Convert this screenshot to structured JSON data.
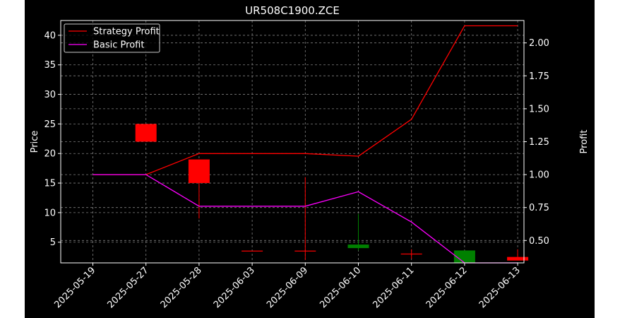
{
  "chart_data": {
    "type": "candlestick",
    "title": "UR508C1900.ZCE",
    "categories": [
      "2025-05-19",
      "2025-05-27",
      "2025-05-28",
      "2025-06-03",
      "2025-06-09",
      "2025-06-10",
      "2025-06-11",
      "2025-06-12",
      "2025-06-13"
    ],
    "ylabel_left": "Price",
    "ylabel_right": "Profit",
    "ylim_left": [
      1.5,
      42.5
    ],
    "ylim_right": [
      0.33,
      2.17
    ],
    "yticks_left": [
      "5",
      "10",
      "15",
      "20",
      "25",
      "30",
      "35",
      "40"
    ],
    "yticks_right": [
      "0.50",
      "0.75",
      "1.00",
      "1.25",
      "1.50",
      "1.75",
      "2.00"
    ],
    "grid": true,
    "legend_position": "top-left",
    "candles": [
      {
        "date": "2025-05-27",
        "open": 25.0,
        "close": 22.0,
        "high": 25.0,
        "low": 22.0,
        "color": "#ff0000"
      },
      {
        "date": "2025-05-28",
        "open": 19.0,
        "close": 15.0,
        "high": 19.0,
        "low": 9.0,
        "color": "#ff0000"
      },
      {
        "date": "2025-06-03",
        "open": 3.5,
        "close": 3.5,
        "high": 3.5,
        "low": 3.5,
        "color": "#ff0000"
      },
      {
        "date": "2025-06-09",
        "open": 3.5,
        "close": 3.5,
        "high": 16.0,
        "low": 2.0,
        "color": "#ff0000"
      },
      {
        "date": "2025-06-10",
        "open": 4.0,
        "close": 4.6,
        "high": 9.8,
        "low": 3.6,
        "color": "#008000"
      },
      {
        "date": "2025-06-11",
        "open": 3.0,
        "close": 3.0,
        "high": 3.8,
        "low": 2.2,
        "color": "#ff0000"
      },
      {
        "date": "2025-06-12",
        "open": 1.5,
        "close": 3.6,
        "high": 3.6,
        "low": 1.5,
        "color": "#008000"
      },
      {
        "date": "2025-06-13",
        "open": 2.5,
        "close": 1.9,
        "high": 3.8,
        "low": 1.9,
        "color": "#ff0000"
      }
    ],
    "series": [
      {
        "name": "Strategy Profit",
        "color": "#ff0000",
        "values": [
          1.0,
          1.0,
          1.16,
          1.16,
          1.16,
          1.14,
          1.42,
          2.13,
          2.13
        ]
      },
      {
        "name": "Basic Profit",
        "color": "#ff00ff",
        "values": [
          1.0,
          1.0,
          0.76,
          0.76,
          0.76,
          0.87,
          0.64,
          0.33,
          0.33
        ]
      }
    ]
  }
}
